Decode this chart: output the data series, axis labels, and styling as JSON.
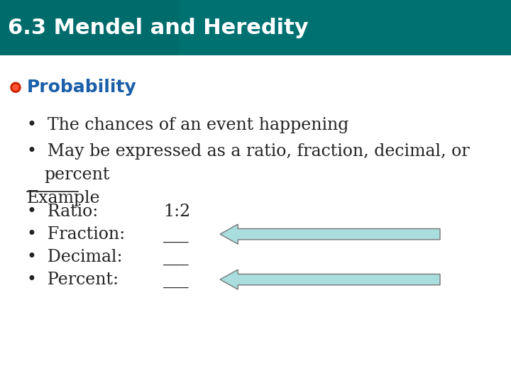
{
  "title": "6.3 Mendel and Heredity",
  "title_color": "#FFFFFF",
  "title_bg_color": "#006b6b",
  "title_fontsize": 22,
  "body_bg": "#FFFFFF",
  "section_label": "Probability",
  "section_label_color": "#1a5fa8",
  "section_bullet_color": "#cc2200",
  "section_bullet_inner": "#ff5533",
  "bullet1": "The chances of an event happening",
  "bullet2_line1": "May be expressed as a ratio, fraction, decimal, or",
  "bullet2_line2": "percent",
  "example_label": "Example",
  "items": [
    "Ratio:",
    "Fraction:",
    "Decimal:",
    "Percent:"
  ],
  "blanks": [
    "1:2",
    "___",
    "___",
    "___"
  ],
  "arrow_color": "#aadddd",
  "arrow_border": "#777777",
  "arrow_rows": [
    1,
    3
  ],
  "body_text_color": "#222222",
  "body_fontsize": 17,
  "example_fontsize": 17
}
